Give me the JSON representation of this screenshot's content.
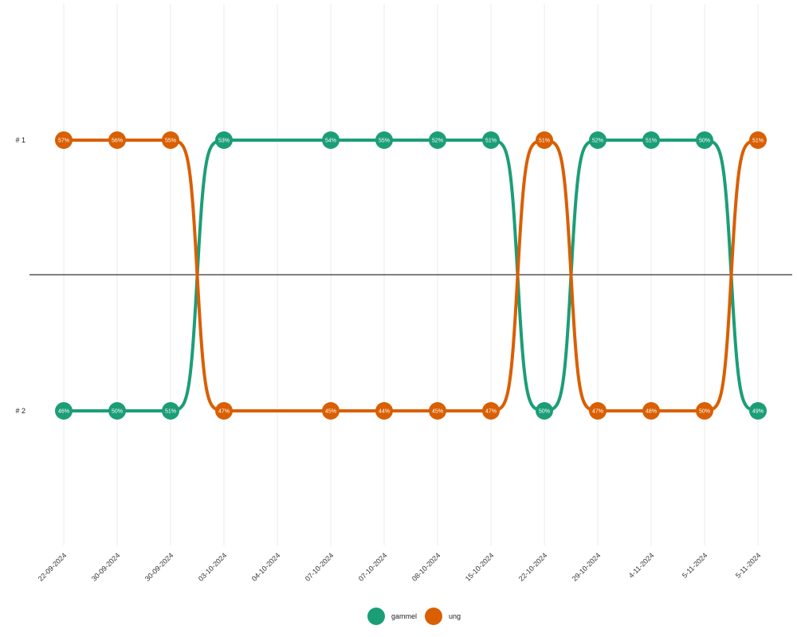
{
  "chart_data": {
    "type": "line",
    "title": "",
    "xlabel": "",
    "ylabel": "",
    "x": [
      "22-09-2024",
      "30-09-2024",
      "30-09-2024",
      "03-10-2024",
      "04-10-2024",
      "07-10-2024",
      "07-10-2024",
      "08-10-2024",
      "15-10-2024",
      "22-10-2024",
      "29-10-2024",
      "4-11-2024",
      "5-11-2024",
      "5-11-2024"
    ],
    "y_ticks": [
      "# 1",
      "# 2"
    ],
    "series": [
      {
        "name": "gammel",
        "color": "#1b9e77",
        "rank": [
          2,
          2,
          2,
          1,
          null,
          1,
          1,
          1,
          1,
          2,
          1,
          1,
          1,
          2
        ],
        "labels": [
          "46%",
          "50%",
          "51%",
          "53%",
          null,
          "54%",
          "55%",
          "52%",
          "51%",
          "50%",
          "52%",
          "51%",
          "50%",
          "49%"
        ]
      },
      {
        "name": "ung",
        "color": "#d95f02",
        "rank": [
          1,
          1,
          1,
          2,
          null,
          2,
          2,
          2,
          2,
          1,
          2,
          2,
          2,
          1
        ],
        "labels": [
          "57%",
          "56%",
          "55%",
          "47%",
          null,
          "45%",
          "44%",
          "45%",
          "47%",
          "51%",
          "47%",
          "48%",
          "50%",
          "51%"
        ]
      }
    ],
    "grid": true,
    "midline": true,
    "legend_position": "bottom"
  }
}
